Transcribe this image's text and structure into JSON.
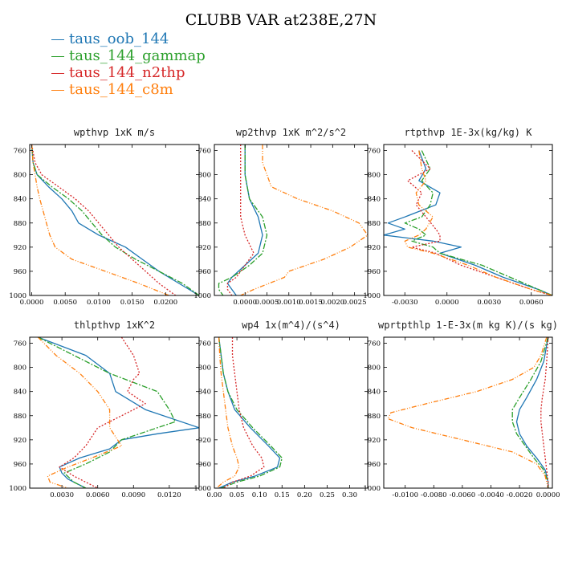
{
  "title": "CLUBB VAR at238E,27N",
  "legend": [
    {
      "name": "taus_oob_144",
      "color": "#1f77b4"
    },
    {
      "name": "taus_144_gammap",
      "color": "#2ca02c"
    },
    {
      "name": "taus_144_n2thp",
      "color": "#d62728"
    },
    {
      "name": "taus_144_c8m",
      "color": "#ff7f0e"
    }
  ],
  "chart_data": [
    {
      "type": "line",
      "title": "wpthvp  1xK m/s",
      "xlim": [
        -0.0003,
        0.025
      ],
      "ylim": [
        1000,
        750
      ],
      "xticks": [
        0,
        0.005,
        0.01,
        0.015,
        0.02
      ],
      "xtick_labels": [
        "0.0000",
        "0.0050",
        "0.0100",
        "0.0150",
        "0.0200"
      ],
      "yticks": [
        760,
        800,
        840,
        880,
        920,
        960,
        1000
      ],
      "series": [
        {
          "name": "taus_oob_144",
          "y": [
            750,
            780,
            800,
            820,
            840,
            860,
            880,
            900,
            920,
            940,
            960,
            980,
            1000
          ],
          "x": [
            0.0,
            0.0002,
            0.0008,
            0.0025,
            0.0045,
            0.006,
            0.007,
            0.01,
            0.014,
            0.0165,
            0.019,
            0.022,
            0.025
          ]
        },
        {
          "name": "taus_144_gammap",
          "y": [
            750,
            780,
            800,
            820,
            840,
            860,
            880,
            900,
            920,
            940,
            960,
            980,
            1000
          ],
          "x": [
            0.0,
            0.0002,
            0.0008,
            0.003,
            0.0055,
            0.0075,
            0.009,
            0.0105,
            0.0125,
            0.0155,
            0.019,
            0.0225,
            0.025
          ]
        },
        {
          "name": "taus_144_n2thp",
          "y": [
            750,
            780,
            800,
            820,
            840,
            860,
            880,
            900,
            920,
            940,
            960,
            980,
            1000
          ],
          "x": [
            0.0,
            0.0005,
            0.0015,
            0.004,
            0.0065,
            0.0085,
            0.01,
            0.0115,
            0.013,
            0.015,
            0.017,
            0.019,
            0.0215
          ]
        },
        {
          "name": "taus_144_c8m",
          "y": [
            750,
            780,
            800,
            820,
            840,
            860,
            880,
            900,
            920,
            940,
            960,
            980,
            1000
          ],
          "x": [
            0.0,
            0.0002,
            0.0005,
            0.0008,
            0.0012,
            0.0017,
            0.0022,
            0.0027,
            0.0035,
            0.006,
            0.011,
            0.016,
            0.0205
          ]
        }
      ]
    },
    {
      "type": "line",
      "title": "wp2thvp  1xK m^2/s^2",
      "xlim": [
        -0.0007,
        0.0028
      ],
      "ylim": [
        1000,
        750
      ],
      "xticks": [
        0,
        0.0005,
        0.001,
        0.0015,
        0.002,
        0.0025
      ],
      "xtick_labels": [
        "0.0000",
        "0.0005",
        "0.0010",
        "0.0015",
        "0.0020",
        "0.0025"
      ],
      "yticks": [
        760,
        800,
        840,
        880,
        920,
        960,
        1000
      ],
      "series": [
        {
          "name": "taus_oob_144",
          "y": [
            750,
            800,
            840,
            870,
            900,
            930,
            950,
            970,
            980,
            990,
            1000
          ],
          "x": [
            0.0,
            0.0,
            0.0001,
            0.0003,
            0.0004,
            0.0003,
            0.0,
            -0.0003,
            -0.0004,
            -0.0003,
            -0.0002
          ]
        },
        {
          "name": "taus_144_gammap",
          "y": [
            750,
            800,
            840,
            870,
            900,
            930,
            950,
            970,
            980,
            990,
            1000
          ],
          "x": [
            0.0,
            0.0,
            0.0001,
            0.0004,
            0.0005,
            0.0004,
            0.0001,
            -0.0003,
            -0.0006,
            -0.0006,
            -0.0005
          ]
        },
        {
          "name": "taus_144_n2thp",
          "y": [
            750,
            800,
            840,
            870,
            900,
            930,
            950,
            970,
            980,
            990,
            1000
          ],
          "x": [
            -0.0001,
            -0.0001,
            -0.0001,
            -0.0001,
            0.0,
            0.0002,
            0.0,
            -0.0002,
            -0.0004,
            -0.0004,
            -0.0003
          ]
        },
        {
          "name": "taus_144_c8m",
          "y": [
            750,
            780,
            800,
            820,
            840,
            860,
            880,
            900,
            920,
            940,
            960,
            970,
            990,
            1000
          ],
          "x": [
            0.0004,
            0.0004,
            0.0005,
            0.0006,
            0.0012,
            0.002,
            0.0026,
            0.0028,
            0.0024,
            0.0018,
            0.001,
            0.0009,
            0.0002,
            -0.0001
          ]
        }
      ]
    },
    {
      "type": "line",
      "title": "rtpthvp  1E-3x(kg/kg) K",
      "xlim": [
        -0.0045,
        0.0075
      ],
      "ylim": [
        1000,
        750
      ],
      "xticks": [
        -0.003,
        0,
        0.003,
        0.006
      ],
      "xtick_labels": [
        "-0.0030",
        "0.0000",
        "0.0030",
        "0.0060"
      ],
      "yticks": [
        760,
        800,
        840,
        880,
        920,
        960,
        1000
      ],
      "series": [
        {
          "name": "taus_oob_144",
          "y": [
            760,
            790,
            810,
            830,
            850,
            870,
            880,
            890,
            900,
            910,
            920,
            930,
            950,
            970,
            990,
            1000
          ],
          "x": [
            -0.002,
            -0.0015,
            -0.002,
            -0.0005,
            -0.0008,
            -0.003,
            -0.0042,
            -0.003,
            -0.0045,
            -0.001,
            0.001,
            -0.0005,
            0.002,
            0.004,
            0.0065,
            0.0075
          ]
        },
        {
          "name": "taus_144_gammap",
          "y": [
            760,
            790,
            810,
            830,
            850,
            870,
            880,
            890,
            900,
            910,
            920,
            930,
            950,
            970,
            990,
            1000
          ],
          "x": [
            -0.0018,
            -0.0012,
            -0.0018,
            -0.001,
            -0.0012,
            -0.0018,
            -0.003,
            -0.002,
            -0.0015,
            -0.0025,
            -0.001,
            -0.0005,
            0.0025,
            0.0045,
            0.0065,
            0.0075
          ]
        },
        {
          "name": "taus_144_n2thp",
          "y": [
            760,
            790,
            810,
            830,
            850,
            870,
            890,
            900,
            910,
            920,
            930,
            950,
            970,
            990,
            1000
          ],
          "x": [
            -0.0025,
            -0.0012,
            -0.0028,
            -0.0018,
            -0.0022,
            -0.0015,
            -0.0008,
            -0.0005,
            -0.0005,
            -0.0025,
            -0.0008,
            0.001,
            0.0035,
            0.006,
            0.0075
          ]
        },
        {
          "name": "taus_144_c8m",
          "y": [
            760,
            790,
            810,
            830,
            850,
            870,
            890,
            900,
            910,
            920,
            930,
            950,
            970,
            990,
            1000
          ],
          "x": [
            -0.002,
            -0.0018,
            -0.0015,
            -0.0022,
            -0.002,
            -0.001,
            -0.0015,
            -0.002,
            -0.003,
            -0.0028,
            -0.001,
            0.0015,
            0.0035,
            0.006,
            0.0075
          ]
        }
      ]
    },
    {
      "type": "line",
      "title": "thlpthvp  1xK^2",
      "xlim": [
        0.0003,
        0.0145
      ],
      "ylim": [
        1000,
        750
      ],
      "xticks": [
        0.003,
        0.006,
        0.009,
        0.012
      ],
      "xtick_labels": [
        "0.0030",
        "0.0060",
        "0.0090",
        "0.0120"
      ],
      "yticks": [
        760,
        800,
        840,
        880,
        920,
        960,
        1000
      ],
      "series": [
        {
          "name": "taus_oob_144",
          "y": [
            750,
            780,
            810,
            840,
            870,
            900,
            910,
            920,
            935,
            950,
            965,
            975,
            985,
            1000
          ],
          "x": [
            0.001,
            0.005,
            0.007,
            0.0075,
            0.01,
            0.0145,
            0.011,
            0.008,
            0.007,
            0.0045,
            0.0028,
            0.003,
            0.0035,
            0.005
          ]
        },
        {
          "name": "taus_144_gammap",
          "y": [
            750,
            780,
            810,
            840,
            870,
            890,
            900,
            920,
            940,
            960,
            975,
            990,
            1000
          ],
          "x": [
            0.001,
            0.004,
            0.007,
            0.011,
            0.012,
            0.0125,
            0.011,
            0.008,
            0.007,
            0.005,
            0.0032,
            0.004,
            0.005
          ]
        },
        {
          "name": "taus_144_n2thp",
          "y": [
            750,
            780,
            810,
            820,
            840,
            860,
            880,
            900,
            930,
            950,
            965,
            980,
            1000
          ],
          "x": [
            0.008,
            0.009,
            0.0095,
            0.009,
            0.0085,
            0.01,
            0.008,
            0.006,
            0.005,
            0.004,
            0.0028,
            0.004,
            0.006
          ]
        },
        {
          "name": "taus_144_c8m",
          "y": [
            750,
            780,
            810,
            840,
            870,
            900,
            930,
            950,
            965,
            980,
            990,
            1000
          ],
          "x": [
            0.001,
            0.0025,
            0.0045,
            0.006,
            0.007,
            0.007,
            0.008,
            0.0055,
            0.0035,
            0.0018,
            0.002,
            0.0035
          ]
        }
      ]
    },
    {
      "type": "line",
      "title": "wp4  1x(m^4)/(s^4)",
      "xlim": [
        0.0,
        0.34
      ],
      "ylim": [
        1000,
        750
      ],
      "xticks": [
        0,
        0.05,
        0.1,
        0.15,
        0.2,
        0.25,
        0.3
      ],
      "xtick_labels": [
        "0.00",
        "0.05",
        "0.10",
        "0.15",
        "0.20",
        "0.25",
        "0.30"
      ],
      "yticks": [
        760,
        800,
        840,
        880,
        920,
        960,
        1000
      ],
      "series": [
        {
          "name": "taus_oob_144",
          "y": [
            750,
            780,
            810,
            840,
            870,
            900,
            930,
            950,
            965,
            980,
            990,
            1000
          ],
          "x": [
            0.01,
            0.015,
            0.02,
            0.03,
            0.045,
            0.08,
            0.12,
            0.145,
            0.14,
            0.09,
            0.04,
            0.01
          ]
        },
        {
          "name": "taus_144_gammap",
          "y": [
            750,
            780,
            810,
            840,
            870,
            900,
            930,
            950,
            965,
            980,
            990,
            1000
          ],
          "x": [
            0.01,
            0.015,
            0.02,
            0.03,
            0.05,
            0.085,
            0.125,
            0.15,
            0.145,
            0.1,
            0.05,
            0.015
          ]
        },
        {
          "name": "taus_144_n2thp",
          "y": [
            750,
            780,
            810,
            840,
            870,
            900,
            930,
            950,
            965,
            980,
            990,
            1000
          ],
          "x": [
            0.04,
            0.04,
            0.045,
            0.05,
            0.055,
            0.065,
            0.085,
            0.105,
            0.11,
            0.08,
            0.04,
            0.02
          ]
        },
        {
          "name": "taus_144_c8m",
          "y": [
            750,
            780,
            810,
            840,
            870,
            900,
            930,
            950,
            965,
            980,
            990,
            1000
          ],
          "x": [
            0.01,
            0.012,
            0.015,
            0.02,
            0.025,
            0.03,
            0.04,
            0.05,
            0.055,
            0.045,
            0.02,
            0.005
          ]
        }
      ]
    },
    {
      "type": "line",
      "title": "wprtpthlp  1-E-3x(m kg K)/(s kg)",
      "xlim": [
        -0.0115,
        0.0003
      ],
      "ylim": [
        1000,
        750
      ],
      "xticks": [
        -0.01,
        -0.008,
        -0.006,
        -0.004,
        -0.002,
        0
      ],
      "xtick_labels": [
        "-0.0100",
        "-0.0080",
        "-0.0060",
        "-0.0040",
        "-0.0020",
        "0.0000"
      ],
      "yticks": [
        760,
        800,
        840,
        880,
        920,
        960,
        1000
      ],
      "series": [
        {
          "name": "taus_oob_144",
          "y": [
            750,
            790,
            820,
            850,
            870,
            890,
            910,
            930,
            950,
            970,
            990,
            1000
          ],
          "x": [
            0.0,
            -0.0003,
            -0.0008,
            -0.0015,
            -0.002,
            -0.0022,
            -0.002,
            -0.0015,
            -0.0008,
            -0.0002,
            0.0,
            0.0
          ]
        },
        {
          "name": "taus_144_gammap",
          "y": [
            750,
            790,
            820,
            850,
            870,
            890,
            910,
            930,
            950,
            970,
            990,
            1000
          ],
          "x": [
            0.0,
            -0.0005,
            -0.0012,
            -0.002,
            -0.0025,
            -0.0025,
            -0.0022,
            -0.0016,
            -0.001,
            -0.0003,
            0.0,
            0.0
          ]
        },
        {
          "name": "taus_144_n2thp",
          "y": [
            750,
            790,
            820,
            850,
            870,
            890,
            910,
            930,
            950,
            970,
            990,
            1000
          ],
          "x": [
            0.0,
            -0.0001,
            -0.0002,
            -0.0004,
            -0.0005,
            -0.0005,
            -0.0004,
            -0.0003,
            -0.0002,
            -0.0001,
            0.0,
            0.0
          ]
        },
        {
          "name": "taus_144_c8m",
          "y": [
            750,
            780,
            800,
            820,
            840,
            860,
            875,
            885,
            900,
            920,
            940,
            960,
            980,
            1000
          ],
          "x": [
            -0.0001,
            -0.0005,
            -0.001,
            -0.0025,
            -0.005,
            -0.0085,
            -0.011,
            -0.0112,
            -0.0095,
            -0.006,
            -0.0025,
            -0.0008,
            -0.0002,
            0.0
          ]
        }
      ]
    }
  ]
}
